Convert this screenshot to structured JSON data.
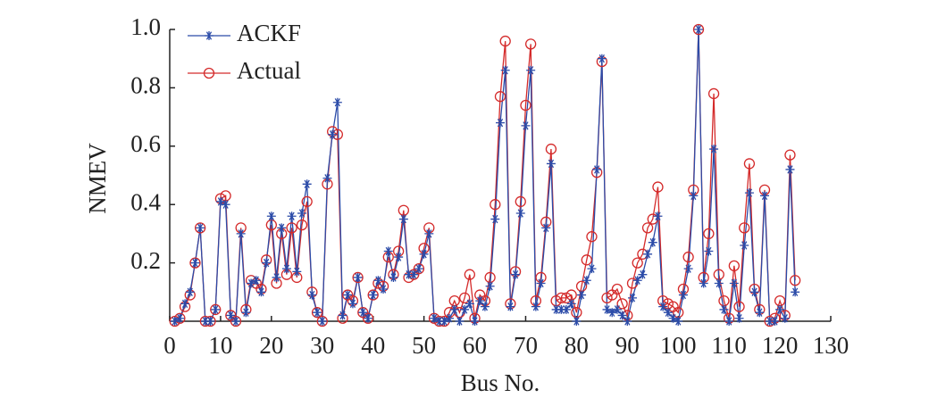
{
  "chart_data": {
    "type": "line",
    "xlabel": "Bus No.",
    "ylabel": "NMEV",
    "x": [
      1,
      2,
      3,
      4,
      5,
      6,
      7,
      8,
      9,
      10,
      11,
      12,
      13,
      14,
      15,
      16,
      17,
      18,
      19,
      20,
      21,
      22,
      23,
      24,
      25,
      26,
      27,
      28,
      29,
      30,
      31,
      32,
      33,
      34,
      35,
      36,
      37,
      38,
      39,
      40,
      41,
      42,
      43,
      44,
      45,
      46,
      47,
      48,
      49,
      50,
      51,
      52,
      53,
      54,
      55,
      56,
      57,
      58,
      59,
      60,
      61,
      62,
      63,
      64,
      65,
      66,
      67,
      68,
      69,
      70,
      71,
      72,
      73,
      74,
      75,
      76,
      77,
      78,
      79,
      80,
      81,
      82,
      83,
      84,
      85,
      86,
      87,
      88,
      89,
      90,
      91,
      92,
      93,
      94,
      95,
      96,
      97,
      98,
      99,
      100,
      101,
      102,
      103,
      104,
      105,
      106,
      107,
      108,
      109,
      110,
      111,
      112,
      113,
      114,
      115,
      116,
      117,
      118,
      119,
      120,
      121,
      122,
      123
    ],
    "series": [
      {
        "name": "ACKF",
        "color": "#2b4ba8",
        "marker": "asterisk",
        "values": [
          0,
          0.01,
          0.06,
          0.1,
          0.2,
          0.32,
          0,
          0,
          0.04,
          0.41,
          0.4,
          0.02,
          0,
          0.3,
          0.03,
          0.13,
          0.14,
          0.1,
          0.2,
          0.36,
          0.15,
          0.32,
          0.18,
          0.36,
          0.17,
          0.37,
          0.47,
          0.09,
          0.03,
          0,
          0.49,
          0.64,
          0.75,
          0.02,
          0.09,
          0.06,
          0.15,
          0.03,
          0.01,
          0.09,
          0.14,
          0.11,
          0.24,
          0.15,
          0.22,
          0.35,
          0.16,
          0.16,
          0.18,
          0.23,
          0.3,
          0.01,
          0,
          0,
          0.01,
          0.04,
          0,
          0.04,
          0.06,
          0,
          0.07,
          0.05,
          0.12,
          0.35,
          0.68,
          0.86,
          0.05,
          0.16,
          0.37,
          0.67,
          0.86,
          0.05,
          0.13,
          0.32,
          0.54,
          0.04,
          0.04,
          0.04,
          0.06,
          0,
          0.09,
          0.14,
          0.18,
          0.52,
          0.9,
          0.04,
          0.03,
          0.04,
          0.02,
          0,
          0.08,
          0.14,
          0.16,
          0.23,
          0.27,
          0.36,
          0.05,
          0.03,
          0.01,
          0,
          0.09,
          0.18,
          0.43,
          1.0,
          0.13,
          0.24,
          0.59,
          0.13,
          0.04,
          0,
          0.13,
          0.01,
          0.26,
          0.44,
          0.1,
          0.03,
          0.43,
          0,
          0,
          0.04,
          0.01,
          0.52,
          0.1
        ]
      },
      {
        "name": "Actual",
        "color": "#d42a2a",
        "marker": "circle",
        "values": [
          0,
          0.01,
          0.05,
          0.09,
          0.2,
          0.32,
          0,
          0,
          0.04,
          0.42,
          0.43,
          0.02,
          0,
          0.32,
          0.04,
          0.14,
          0.13,
          0.11,
          0.21,
          0.33,
          0.13,
          0.3,
          0.16,
          0.32,
          0.15,
          0.33,
          0.41,
          0.1,
          0.03,
          0,
          0.47,
          0.65,
          0.64,
          0.01,
          0.09,
          0.07,
          0.15,
          0.03,
          0.01,
          0.09,
          0.13,
          0.12,
          0.22,
          0.16,
          0.24,
          0.38,
          0.15,
          0.16,
          0.18,
          0.25,
          0.32,
          0.01,
          0,
          0,
          0.03,
          0.07,
          0.03,
          0.08,
          0.16,
          0.01,
          0.09,
          0.07,
          0.15,
          0.4,
          0.77,
          0.96,
          0.06,
          0.17,
          0.41,
          0.74,
          0.95,
          0.07,
          0.15,
          0.34,
          0.59,
          0.07,
          0.08,
          0.08,
          0.09,
          0.03,
          0.12,
          0.21,
          0.29,
          0.51,
          0.89,
          0.08,
          0.09,
          0.11,
          0.06,
          0.02,
          0.13,
          0.2,
          0.23,
          0.32,
          0.35,
          0.46,
          0.07,
          0.06,
          0.05,
          0.03,
          0.11,
          0.22,
          0.45,
          1.0,
          0.15,
          0.3,
          0.78,
          0.16,
          0.07,
          0.01,
          0.19,
          0.05,
          0.32,
          0.54,
          0.11,
          0.04,
          0.45,
          0,
          0.01,
          0.07,
          0.02,
          0.57,
          0.14
        ]
      }
    ],
    "xlim": [
      0,
      130
    ],
    "xticks": [
      0,
      10,
      20,
      30,
      40,
      50,
      60,
      70,
      80,
      90,
      100,
      110,
      120,
      130
    ],
    "ylim": [
      0,
      1
    ],
    "yticks": [
      0.2,
      0.4,
      0.6,
      0.8,
      {
        "value": 1,
        "label": "1.0"
      }
    ],
    "legend": "upper left",
    "grid": false
  }
}
